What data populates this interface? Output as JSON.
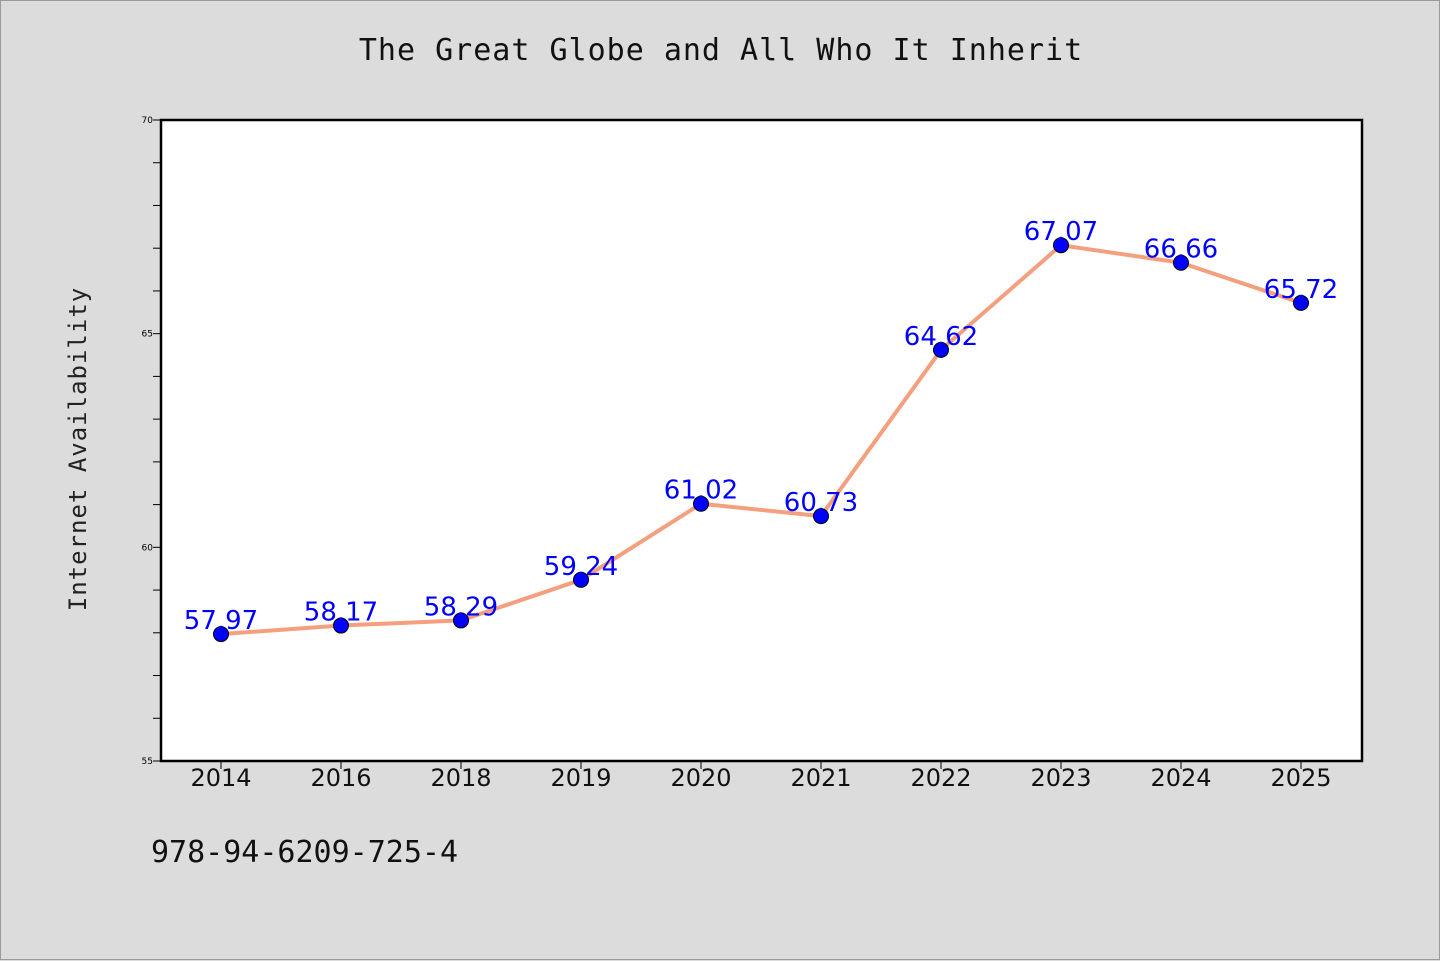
{
  "chart_data": {
    "type": "line",
    "title": "The Great Globe and All Who It Inherit",
    "xlabel": "",
    "ylabel": "Internet Availability",
    "categories": [
      "2014",
      "2016",
      "2018",
      "2019",
      "2020",
      "2021",
      "2022",
      "2023",
      "2024",
      "2025"
    ],
    "series": [
      {
        "values": [
          57.97,
          58.17,
          58.29,
          59.24,
          61.02,
          60.73,
          64.62,
          67.07,
          66.66,
          65.72
        ]
      }
    ],
    "data_labels": [
      "57.97",
      "58.17",
      "58.29",
      "59.24",
      "61.02",
      "60.73",
      "64.62",
      "67.07",
      "66.66",
      "65.72"
    ],
    "ylim": [
      55,
      70
    ],
    "yticks": [
      55,
      60,
      65,
      70
    ],
    "grid": false,
    "line_color": "#f4a07e",
    "marker_color": "#0000ff",
    "label_color": "#0000ff"
  },
  "footer": {
    "text": "978-94-6209-725-4"
  }
}
